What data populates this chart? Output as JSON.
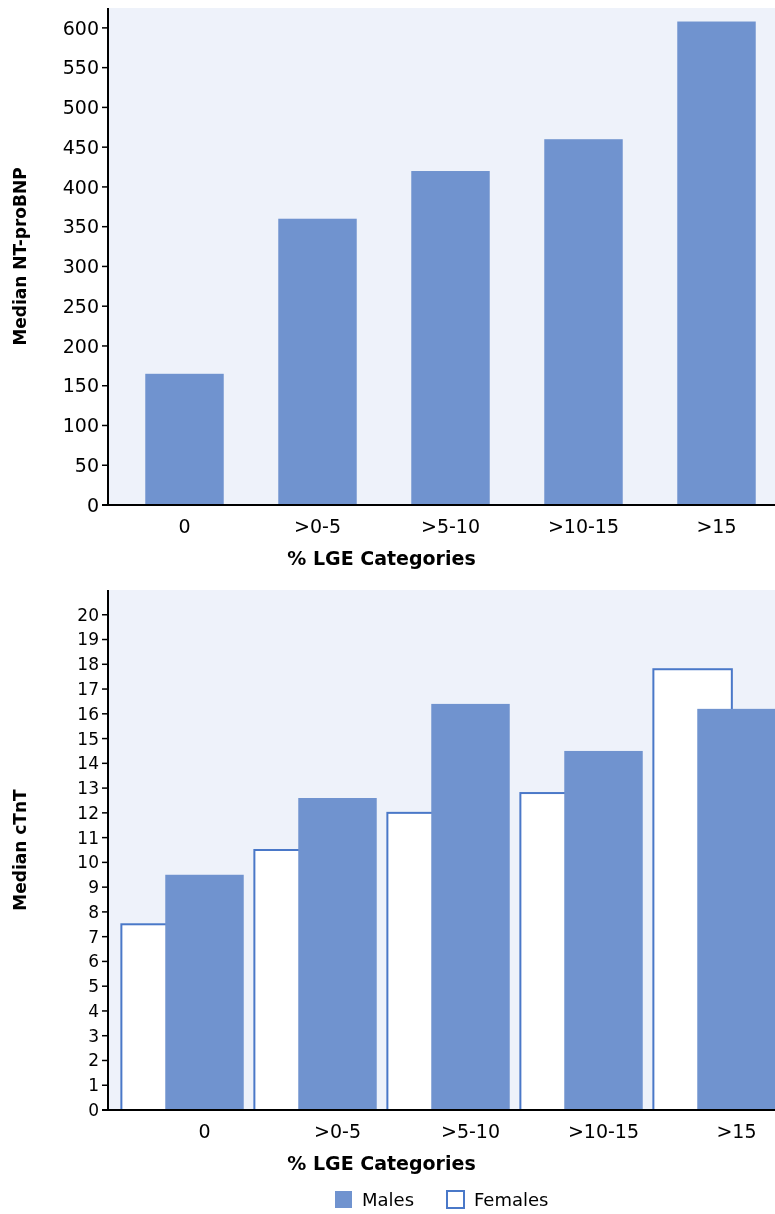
{
  "chart_data": [
    {
      "type": "bar",
      "xlabel": "% LGE Categories",
      "ylabel": "Median NT-proBNP",
      "categories": [
        "0",
        ">0-5",
        ">5-10",
        ">10-15",
        ">15"
      ],
      "series": [
        {
          "color": "#7093cf",
          "values": [
            165,
            360,
            420,
            460,
            608
          ]
        }
      ],
      "ylim": [
        0,
        625
      ],
      "yticks": [
        0,
        50,
        100,
        150,
        200,
        250,
        300,
        350,
        400,
        450,
        500,
        550,
        600
      ],
      "grid": false,
      "legend": false
    },
    {
      "type": "bar",
      "xlabel": "% LGE Categories",
      "ylabel": "Median cTnT",
      "categories": [
        "0",
        ">0-5",
        ">5-10",
        ">10-15",
        ">15"
      ],
      "series": [
        {
          "name": "Males",
          "color": "#7093cf",
          "values": [
            9.5,
            12.6,
            16.4,
            14.5,
            16.2
          ]
        },
        {
          "name": "Females",
          "color": "#4a78c8",
          "line_style": "solid",
          "values": [
            7.5,
            10.5,
            12.0,
            12.8,
            17.8
          ]
        }
      ],
      "ylim": [
        0,
        21
      ],
      "yticks": [
        0,
        1,
        2,
        3,
        4,
        5,
        6,
        7,
        8,
        9,
        10,
        11,
        12,
        13,
        14,
        15,
        16,
        17,
        18,
        19,
        20
      ],
      "grid": false,
      "legend": "bottom"
    }
  ]
}
